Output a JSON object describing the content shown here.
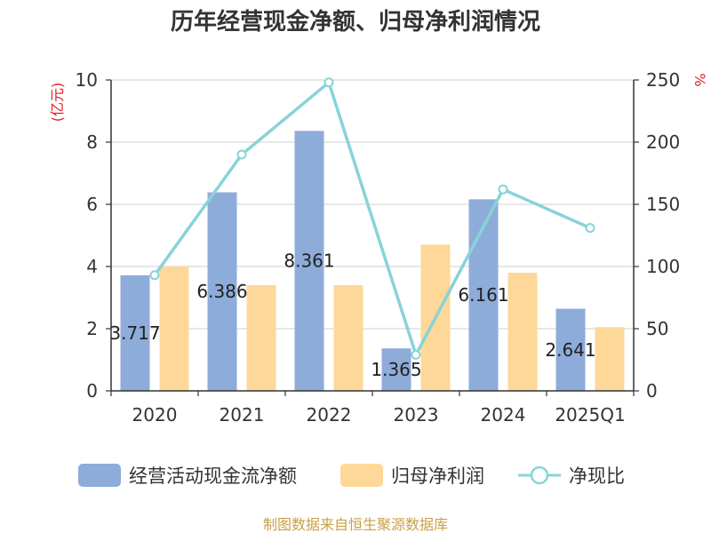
{
  "chart_data": {
    "type": "bar",
    "title": "历年经营现金净额、归母净利润情况",
    "categories": [
      "2020",
      "2021",
      "2022",
      "2023",
      "2024",
      "2025Q1"
    ],
    "series": [
      {
        "name": "经营活动现金流净额",
        "kind": "bar",
        "axis": "left",
        "color": "#8eacd9",
        "values": [
          3.717,
          6.386,
          8.361,
          1.365,
          6.161,
          2.641
        ],
        "labels": [
          "3.717",
          "6.386",
          "8.361",
          "1.365",
          "6.161",
          "2.641"
        ]
      },
      {
        "name": "归母净利润",
        "kind": "bar",
        "axis": "left",
        "color": "#fdd898",
        "values": [
          4.0,
          3.4,
          3.4,
          4.7,
          3.8,
          2.05
        ]
      },
      {
        "name": "净现比",
        "kind": "line",
        "axis": "right",
        "color": "#88d3d8",
        "values": [
          93,
          190,
          248,
          29,
          162,
          131
        ]
      }
    ],
    "y_left": {
      "unit": "(亿元)",
      "ylim": [
        0,
        10
      ],
      "ticks": [
        "0",
        "2",
        "4",
        "6",
        "8",
        "10"
      ]
    },
    "y_right": {
      "unit": "%",
      "ylim": [
        0,
        250
      ],
      "ticks": [
        "0",
        "50",
        "100",
        "150",
        "200",
        "250"
      ]
    },
    "grid": true,
    "legend_position": "bottom"
  },
  "source_text": "制图数据来自恒生聚源数据库"
}
